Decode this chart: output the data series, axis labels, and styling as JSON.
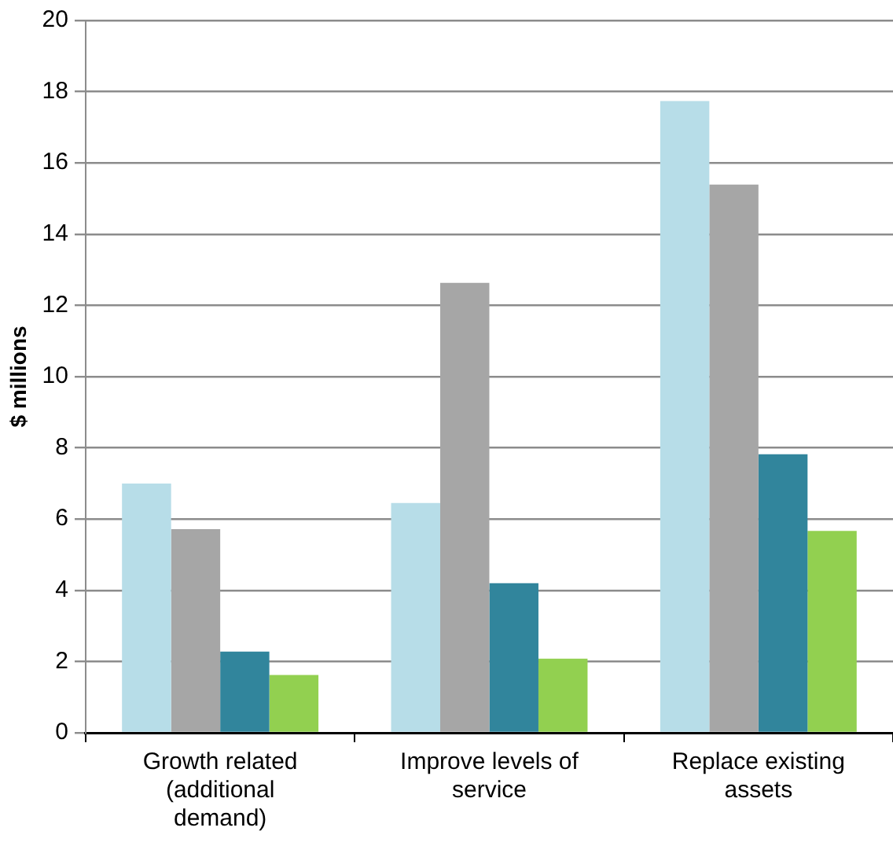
{
  "chart_data": {
    "type": "bar",
    "ylabel": "$ millions",
    "categories": [
      "Growth related (additional demand)",
      "Improve levels of service",
      "Replace existing assets"
    ],
    "series": [
      {
        "color": "#b7dde8",
        "values": [
          7.0,
          6.45,
          17.74
        ]
      },
      {
        "color": "#a6a6a6",
        "values": [
          5.72,
          12.63,
          15.39
        ]
      },
      {
        "color": "#31859c",
        "values": [
          2.28,
          4.2,
          7.82
        ]
      },
      {
        "color": "#92d050",
        "values": [
          1.62,
          2.08,
          5.67
        ]
      }
    ],
    "ylim": [
      0,
      20
    ],
    "yticks": [
      0,
      2,
      4,
      6,
      8,
      10,
      12,
      14,
      16,
      18,
      20
    ],
    "grid": "y",
    "legend": false
  }
}
